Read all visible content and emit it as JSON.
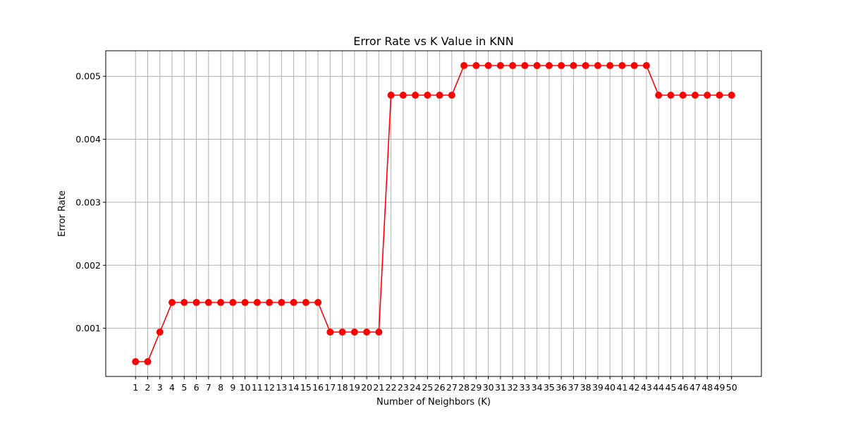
{
  "chart_data": {
    "type": "line",
    "title": "Error Rate vs K Value in KNN",
    "xlabel": "Number of Neighbors (K)",
    "ylabel": "Error Rate",
    "x": [
      1,
      2,
      3,
      4,
      5,
      6,
      7,
      8,
      9,
      10,
      11,
      12,
      13,
      14,
      15,
      16,
      17,
      18,
      19,
      20,
      21,
      22,
      23,
      24,
      25,
      26,
      27,
      28,
      29,
      30,
      31,
      32,
      33,
      34,
      35,
      36,
      37,
      38,
      39,
      40,
      41,
      42,
      43,
      44,
      45,
      46,
      47,
      48,
      49,
      50
    ],
    "series": [
      {
        "color": "#ff0000",
        "marker": "circle",
        "values": [
          0.00047,
          0.00047,
          0.00094,
          0.00141,
          0.00141,
          0.00141,
          0.00141,
          0.00141,
          0.00141,
          0.00141,
          0.00141,
          0.00141,
          0.00141,
          0.00141,
          0.00141,
          0.00141,
          0.00094,
          0.00094,
          0.00094,
          0.00094,
          0.00094,
          0.0047,
          0.0047,
          0.0047,
          0.0047,
          0.0047,
          0.0047,
          0.00517,
          0.00517,
          0.00517,
          0.00517,
          0.00517,
          0.00517,
          0.00517,
          0.00517,
          0.00517,
          0.00517,
          0.00517,
          0.00517,
          0.00517,
          0.00517,
          0.00517,
          0.00517,
          0.0047,
          0.0047,
          0.0047,
          0.0047,
          0.0047,
          0.0047,
          0.0047
        ]
      }
    ],
    "xticks": [
      1,
      2,
      3,
      4,
      5,
      6,
      7,
      8,
      9,
      10,
      11,
      12,
      13,
      14,
      15,
      16,
      17,
      18,
      19,
      20,
      21,
      22,
      23,
      24,
      25,
      26,
      27,
      28,
      29,
      30,
      31,
      32,
      33,
      34,
      35,
      36,
      37,
      38,
      39,
      40,
      41,
      42,
      43,
      44,
      45,
      46,
      47,
      48,
      49,
      50
    ],
    "yticks": [
      "0.001",
      "0.002",
      "0.003",
      "0.004",
      "0.005"
    ],
    "xlim": [
      -1.45,
      52.45
    ],
    "ylim": [
      0.000235,
      0.005405
    ],
    "grid": true
  }
}
